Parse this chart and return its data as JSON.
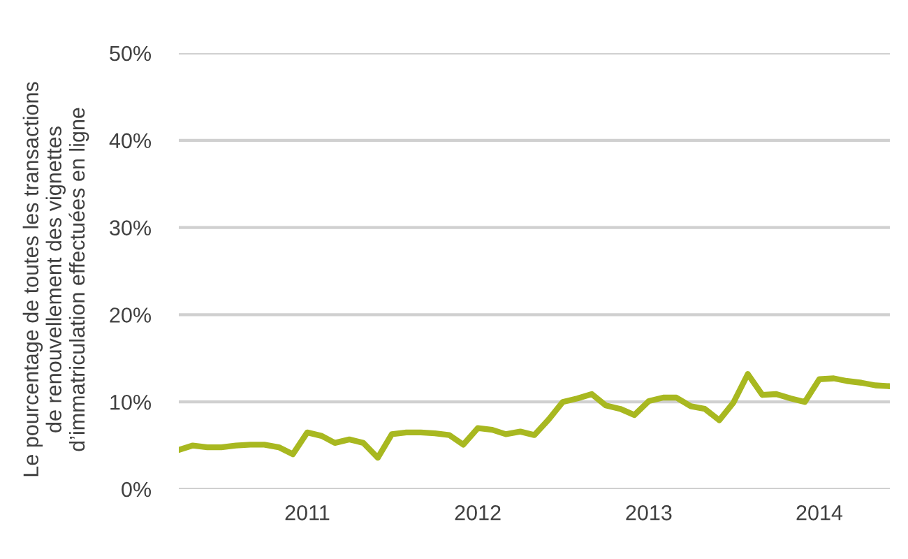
{
  "chart_data": {
    "type": "line",
    "ylabel": "Le pourcentage de toutes les transactions\nde renouvellement des vignettes\nd’immatriculation effectuées en ligne",
    "x": [
      "2010-04",
      "2010-05",
      "2010-06",
      "2010-07",
      "2010-08",
      "2010-09",
      "2010-10",
      "2010-11",
      "2010-12",
      "2011-01",
      "2011-02",
      "2011-03",
      "2011-04",
      "2011-05",
      "2011-06",
      "2011-07",
      "2011-08",
      "2011-09",
      "2011-10",
      "2011-11",
      "2011-12",
      "2012-01",
      "2012-02",
      "2012-03",
      "2012-04",
      "2012-05",
      "2012-06",
      "2012-07",
      "2012-08",
      "2012-09",
      "2012-10",
      "2012-11",
      "2012-12",
      "2013-01",
      "2013-02",
      "2013-03",
      "2013-04",
      "2013-05",
      "2013-06",
      "2013-07",
      "2013-08",
      "2013-09",
      "2013-10",
      "2013-11",
      "2013-12",
      "2014-01",
      "2014-02",
      "2014-03",
      "2014-04",
      "2014-05",
      "2014-06"
    ],
    "series": [
      {
        "color": "#a8b820",
        "values": [
          4.5,
          5.0,
          4.8,
          4.8,
          5.0,
          5.1,
          5.1,
          4.8,
          4.0,
          6.5,
          6.1,
          5.3,
          5.7,
          5.3,
          3.6,
          6.3,
          6.5,
          6.5,
          6.4,
          6.2,
          5.1,
          7.0,
          6.8,
          6.3,
          6.6,
          6.2,
          8.0,
          10.0,
          10.4,
          10.9,
          9.6,
          9.2,
          8.5,
          10.1,
          10.5,
          10.5,
          9.5,
          9.2,
          7.9,
          9.9,
          13.2,
          10.8,
          10.9,
          10.4,
          10.0,
          12.6,
          12.7,
          12.4,
          12.2,
          11.9,
          11.8
        ]
      }
    ],
    "xlim": [
      "2010-04",
      "2014-06"
    ],
    "xticks": [
      {
        "value": "2011-01",
        "label": "2011"
      },
      {
        "value": "2012-01",
        "label": "2012"
      },
      {
        "value": "2013-01",
        "label": "2013"
      },
      {
        "value": "2014-01",
        "label": "2014"
      }
    ],
    "ylim": [
      0,
      50
    ],
    "yticks": [
      {
        "value": 0,
        "label": "0%"
      },
      {
        "value": 10,
        "label": "10%"
      },
      {
        "value": 20,
        "label": "20%"
      },
      {
        "value": 30,
        "label": "30%"
      },
      {
        "value": 40,
        "label": "40%"
      },
      {
        "value": 50,
        "label": "50%"
      }
    ],
    "grid": "y",
    "legend": false,
    "marker": "none",
    "line_style": "solid"
  }
}
